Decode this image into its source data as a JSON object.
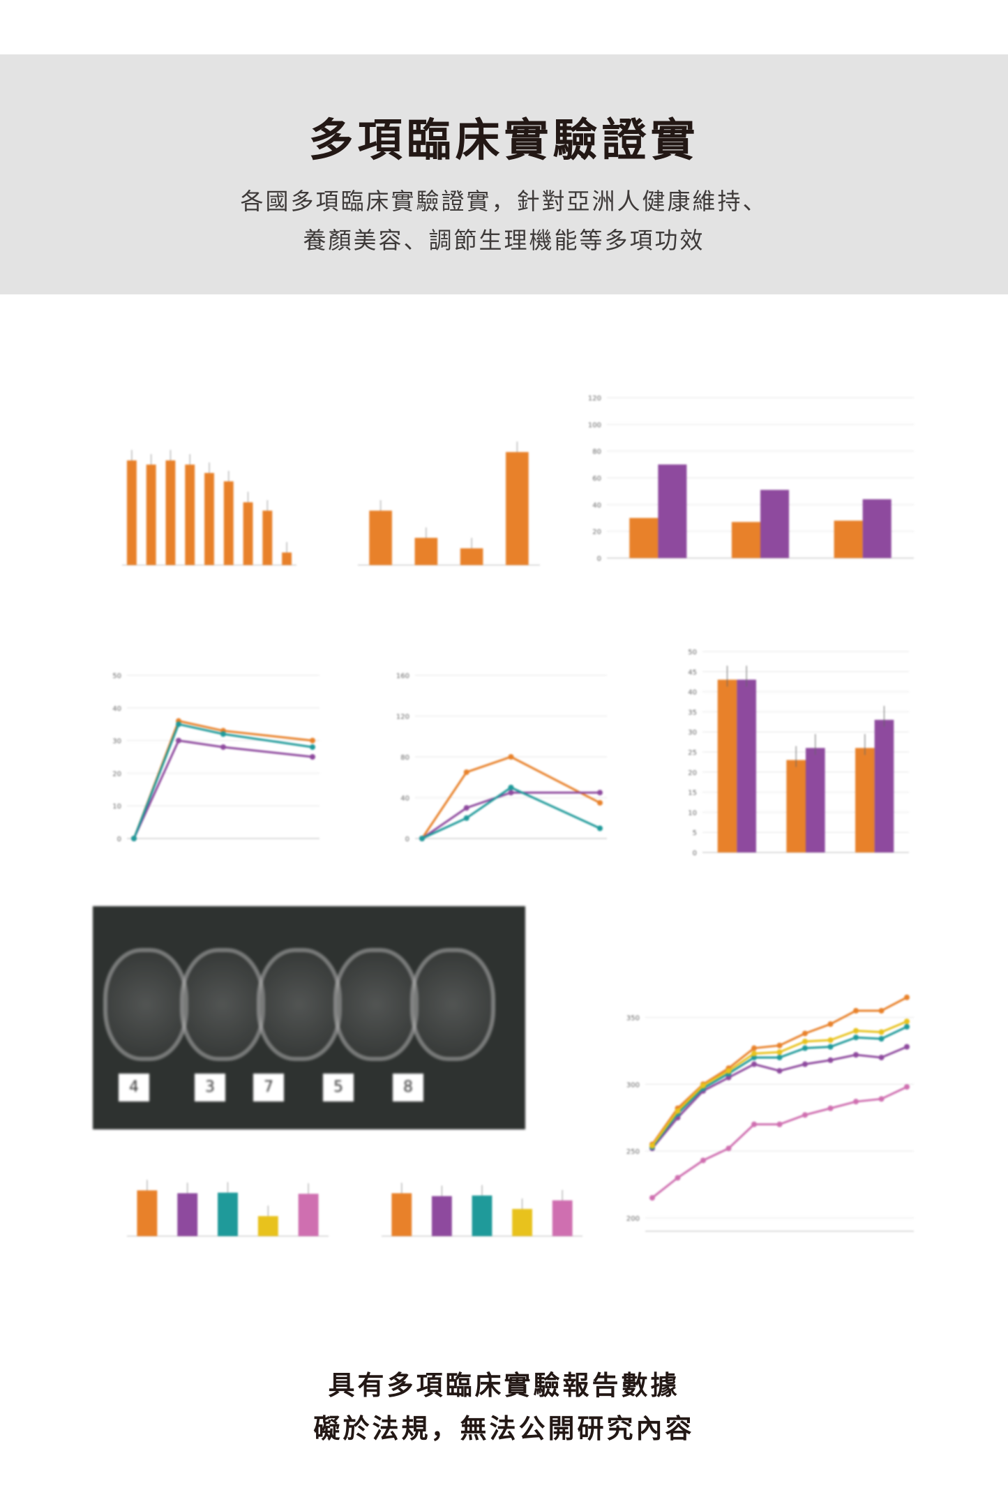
{
  "header": {
    "title": "多項臨床實驗證實",
    "subtitle_lines": [
      "各國多項臨床實驗證實，針對亞洲人健康維持、",
      "養顏美容、調節生理機能等多項功效"
    ]
  },
  "photo": {
    "labels": [
      "4",
      "3",
      "7",
      "5",
      "8"
    ]
  },
  "footer": {
    "lines": [
      "具有多項臨床實驗報告數據",
      "礙於法規，無法公開研究內容"
    ]
  },
  "colors": {
    "orange": "#e8812a",
    "purple": "#8e4a9e",
    "teal": "#1f9a9a",
    "yellow": "#e8c21d",
    "pink": "#cf6fb0"
  },
  "chart_data": [
    {
      "id": "c1",
      "type": "bar",
      "values": [
        2.5,
        2.4,
        2.5,
        2.4,
        2.2,
        2.0,
        1.5,
        1.3,
        0.3
      ],
      "ylim": [
        0,
        4
      ],
      "colors": [
        "orange"
      ],
      "errors": true
    },
    {
      "id": "c2",
      "type": "bar",
      "values": [
        1.3,
        0.65,
        0.4,
        2.7
      ],
      "ylim": [
        0,
        4
      ],
      "colors": [
        "orange"
      ],
      "errors": true
    },
    {
      "id": "c3",
      "type": "grouped",
      "series": [
        {
          "values": [
            30,
            27,
            28
          ],
          "color": "orange"
        },
        {
          "values": [
            70,
            51,
            44
          ],
          "color": "purple"
        }
      ],
      "ylim": [
        0,
        120
      ],
      "ticks": [
        0,
        20,
        40,
        60,
        80,
        100,
        120
      ]
    },
    {
      "id": "c4",
      "type": "line",
      "x": [
        0,
        0.5,
        1,
        2
      ],
      "xlim": [
        0,
        2
      ],
      "series": [
        {
          "values": [
            0,
            36,
            33,
            30
          ],
          "color": "orange"
        },
        {
          "values": [
            0,
            30,
            28,
            25
          ],
          "color": "purple"
        },
        {
          "values": [
            0,
            35,
            32,
            28
          ],
          "color": "teal"
        }
      ],
      "ylim": [
        0,
        50
      ],
      "ticks": [
        0,
        10,
        20,
        30,
        40,
        50
      ]
    },
    {
      "id": "c5",
      "type": "line",
      "x": [
        0,
        0.5,
        1,
        2
      ],
      "xlim": [
        0,
        2
      ],
      "series": [
        {
          "values": [
            0,
            65,
            80,
            35
          ],
          "color": "orange"
        },
        {
          "values": [
            0,
            30,
            45,
            45
          ],
          "color": "purple"
        },
        {
          "values": [
            0,
            20,
            50,
            10
          ],
          "color": "teal"
        }
      ],
      "ylim": [
        0,
        160
      ],
      "ticks": [
        0,
        40,
        80,
        120,
        160
      ]
    },
    {
      "id": "c6",
      "type": "grouped",
      "series": [
        {
          "values": [
            43,
            23,
            26
          ],
          "color": "orange"
        },
        {
          "values": [
            43,
            26,
            33
          ],
          "color": "purple"
        }
      ],
      "ylim": [
        0,
        50
      ],
      "ticks": [
        0,
        5,
        10,
        15,
        20,
        25,
        30,
        35,
        40,
        45,
        50
      ],
      "errors": true
    },
    {
      "id": "c7",
      "type": "bar",
      "values": [
        160,
        150,
        152,
        70,
        148
      ],
      "ylim": [
        0,
        200
      ],
      "colors": [
        "orange",
        "purple",
        "teal",
        "yellow",
        "pink"
      ],
      "errors": true
    },
    {
      "id": "c8",
      "type": "bar",
      "values": [
        1.5,
        1.4,
        1.42,
        0.95,
        1.25
      ],
      "ylim": [
        0,
        2
      ],
      "colors": [
        "orange",
        "purple",
        "teal",
        "yellow",
        "pink"
      ],
      "errors": true
    },
    {
      "id": "c9",
      "type": "line",
      "x": [
        0,
        1,
        2,
        3,
        4,
        5,
        6,
        7,
        8,
        9,
        10
      ],
      "xlim": [
        0,
        10
      ],
      "ticks": [
        200,
        250,
        300,
        350
      ],
      "ylim": [
        190,
        380
      ],
      "series": [
        {
          "values": [
            255,
            282,
            300,
            312,
            327,
            329,
            338,
            345,
            355,
            355,
            365
          ],
          "color": "orange"
        },
        {
          "values": [
            252,
            275,
            295,
            305,
            315,
            310,
            315,
            318,
            322,
            320,
            328
          ],
          "color": "purple"
        },
        {
          "values": [
            253,
            278,
            297,
            308,
            320,
            320,
            327,
            328,
            335,
            334,
            343
          ],
          "color": "teal"
        },
        {
          "values": [
            254,
            280,
            299,
            310,
            323,
            324,
            332,
            333,
            340,
            339,
            347
          ],
          "color": "yellow"
        },
        {
          "values": [
            215,
            230,
            243,
            252,
            270,
            270,
            277,
            282,
            287,
            289,
            298
          ],
          "color": "pink"
        }
      ]
    }
  ]
}
